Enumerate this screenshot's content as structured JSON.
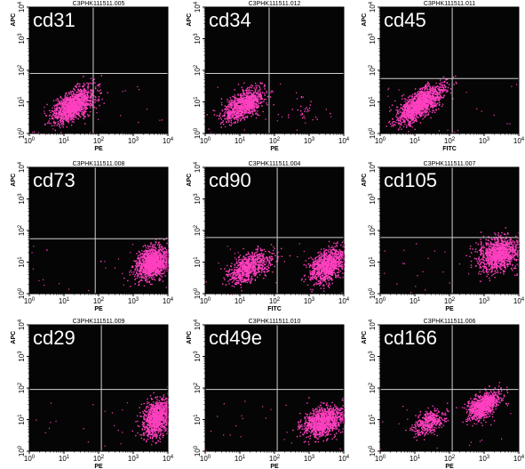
{
  "colors": {
    "plot_bg": "#050505",
    "dot": "#ff3fbf",
    "gate": "#cfcfcf",
    "frame": "#000000"
  },
  "chart_data": [
    {
      "type": "scatter",
      "title": "C3PHK111511.005",
      "marker": "cd31",
      "xlabel": "PE",
      "ylabel": "APC",
      "x_scale": "log",
      "y_scale": "log",
      "xlim": [
        1,
        10000
      ],
      "ylim": [
        1,
        10000
      ],
      "gate": [
        70,
        80
      ],
      "clusters": [
        {
          "cx": 18,
          "cy": 8,
          "sx": 0.3,
          "sy": 0.27,
          "n": 1300,
          "rho": 0.55
        }
      ]
    },
    {
      "type": "scatter",
      "title": "C3PHK111511.012",
      "marker": "cd34",
      "xlabel": "PE",
      "ylabel": "APC",
      "x_scale": "log",
      "y_scale": "log",
      "xlim": [
        1,
        10000
      ],
      "ylim": [
        1,
        10000
      ],
      "gate": [
        70,
        80
      ],
      "clusters": [
        {
          "cx": 12,
          "cy": 8,
          "sx": 0.3,
          "sy": 0.25,
          "n": 1000,
          "rho": 0.6
        },
        {
          "cx": 900,
          "cy": 6,
          "sx": 0.25,
          "sy": 0.2,
          "n": 25,
          "rho": 0
        }
      ]
    },
    {
      "type": "scatter",
      "title": "C3PHK111511.011",
      "marker": "cd45",
      "xlabel": "FITC",
      "ylabel": "APC",
      "x_scale": "log",
      "y_scale": "log",
      "xlim": [
        1,
        10000
      ],
      "ylim": [
        1,
        10000
      ],
      "gate": [
        120,
        55
      ],
      "clusters": [
        {
          "cx": 14,
          "cy": 9,
          "sx": 0.33,
          "sy": 0.3,
          "n": 1400,
          "rho": 0.7
        }
      ]
    },
    {
      "type": "scatter",
      "title": "C3PHK111511.008",
      "marker": "cd73",
      "xlabel": "PE",
      "ylabel": "APC",
      "x_scale": "log",
      "y_scale": "log",
      "xlim": [
        1,
        10000
      ],
      "ylim": [
        1,
        10000
      ],
      "gate": [
        80,
        55
      ],
      "clusters": [
        {
          "cx": 3500,
          "cy": 10,
          "sx": 0.24,
          "sy": 0.25,
          "n": 1300,
          "rho": 0.2
        }
      ]
    },
    {
      "type": "scatter",
      "title": "C3PHK111511.004",
      "marker": "cd90",
      "xlabel": "FITC",
      "ylabel": "APC",
      "x_scale": "log",
      "y_scale": "log",
      "xlim": [
        1,
        10000
      ],
      "ylim": [
        1,
        10000
      ],
      "gate": [
        120,
        60
      ],
      "clusters": [
        {
          "cx": 18,
          "cy": 7,
          "sx": 0.3,
          "sy": 0.25,
          "n": 800,
          "rho": 0.5
        },
        {
          "cx": 3200,
          "cy": 8,
          "sx": 0.25,
          "sy": 0.27,
          "n": 1000,
          "rho": 0.4
        }
      ]
    },
    {
      "type": "scatter",
      "title": "C3PHK111511.007",
      "marker": "cd105",
      "xlabel": "PE",
      "ylabel": "APC",
      "x_scale": "log",
      "y_scale": "log",
      "xlim": [
        1,
        10000
      ],
      "ylim": [
        1,
        10000
      ],
      "gate": [
        120,
        60
      ],
      "clusters": [
        {
          "cx": 2500,
          "cy": 18,
          "sx": 0.3,
          "sy": 0.25,
          "n": 1200,
          "rho": 0.2
        }
      ]
    },
    {
      "type": "scatter",
      "title": "C3PHK111511.009",
      "marker": "cd29",
      "xlabel": "PE",
      "ylabel": "APC",
      "x_scale": "log",
      "y_scale": "log",
      "xlim": [
        1,
        10000
      ],
      "ylim": [
        1,
        10000
      ],
      "gate": [
        120,
        90
      ],
      "clusters": [
        {
          "cx": 4500,
          "cy": 12,
          "sx": 0.2,
          "sy": 0.3,
          "n": 1000,
          "rho": 0.3
        }
      ]
    },
    {
      "type": "scatter",
      "title": "C3PHK111511.010",
      "marker": "cd49e",
      "xlabel": "PE",
      "ylabel": "APC",
      "x_scale": "log",
      "y_scale": "log",
      "xlim": [
        1,
        10000
      ],
      "ylim": [
        1,
        10000
      ],
      "gate": [
        120,
        90
      ],
      "clusters": [
        {
          "cx": 2500,
          "cy": 9,
          "sx": 0.3,
          "sy": 0.23,
          "n": 1100,
          "rho": 0.3
        }
      ]
    },
    {
      "type": "scatter",
      "title": "C3PHK111511.006",
      "marker": "cd166",
      "xlabel": "PE",
      "ylabel": "APC",
      "x_scale": "log",
      "y_scale": "log",
      "xlim": [
        1,
        10000
      ],
      "ylim": [
        1,
        10000
      ],
      "gate": [
        120,
        90
      ],
      "clusters": [
        {
          "cx": 25,
          "cy": 8,
          "sx": 0.22,
          "sy": 0.2,
          "n": 400,
          "rho": 0.4
        },
        {
          "cx": 900,
          "cy": 28,
          "sx": 0.23,
          "sy": 0.22,
          "n": 900,
          "rho": 0.55
        }
      ]
    }
  ]
}
